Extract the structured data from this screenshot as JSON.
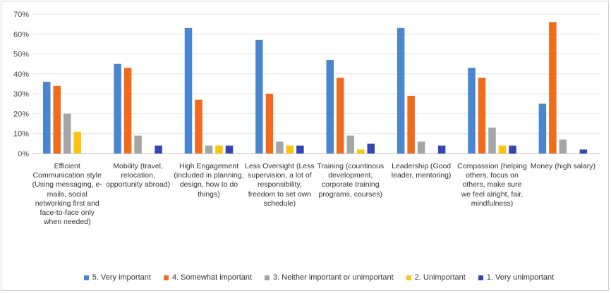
{
  "chart_data": {
    "type": "bar",
    "title": "",
    "xlabel": "",
    "ylabel": "",
    "ylim": [
      0,
      70
    ],
    "yticks": [
      "0%",
      "10%",
      "20%",
      "30%",
      "40%",
      "50%",
      "60%",
      "70%"
    ],
    "grid": true,
    "legend_position": "bottom",
    "categories": [
      "Efficient Communication style (Using messaging, e-mails, social networking first and face-to-face only when needed)",
      "Mobility (travel, relocation, opportunity abroad)",
      "High Engagement (included in planning, design, how to do things)",
      "Less Oversight (Less supervision, a lot of responsibility, freedom to set own schedule)",
      "Training (countinous development, corporate training programs, courses)",
      "Leadership (Good leader, mentoring)",
      "Compassion (helping others, focus on others, make sure we feel alright, fair, mindfulness)",
      "Money (high salary)"
    ],
    "series": [
      {
        "name": "5. Very important",
        "color": "#4A86D0",
        "values": [
          36,
          45,
          63,
          57,
          47,
          63,
          43,
          25
        ]
      },
      {
        "name": "4. Somewhat important",
        "color": "#F26B1D",
        "values": [
          34,
          43,
          27,
          30,
          38,
          29,
          38,
          66
        ]
      },
      {
        "name": "3. Neither important or unimportant",
        "color": "#A5A5A5",
        "values": [
          20,
          9,
          4,
          6,
          9,
          6,
          13,
          7
        ]
      },
      {
        "name": "2. Unimportant",
        "color": "#FFC20E",
        "values": [
          11,
          0,
          4,
          4,
          2,
          0,
          4,
          0
        ]
      },
      {
        "name": "1. Very unimportant",
        "color": "#3347B0",
        "values": [
          0,
          4,
          4,
          4,
          5,
          4,
          4,
          2
        ]
      }
    ]
  }
}
